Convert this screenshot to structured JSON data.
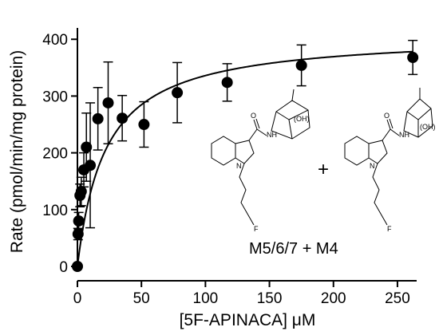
{
  "chart_data": {
    "type": "scatter",
    "title": "",
    "xlabel": "[5F-APINACA] μM",
    "ylabel": "Rate (pmol/min/mg protein)",
    "xlim": [
      0,
      265
    ],
    "ylim": [
      0,
      420
    ],
    "x_ticks": [
      0,
      50,
      100,
      150,
      200,
      250
    ],
    "y_ticks": [
      0,
      100,
      200,
      300,
      400
    ],
    "x_tick_labels": [
      "0",
      "50",
      "100",
      "150",
      "200",
      "250"
    ],
    "y_tick_labels": [
      "0",
      "100",
      "200",
      "300",
      "400"
    ],
    "grid": false,
    "legend": "none",
    "marker_color": "#000000",
    "points": [
      {
        "x": 0,
        "y": 0,
        "err": 0
      },
      {
        "x": 0.5,
        "y": 57,
        "err": 10
      },
      {
        "x": 1,
        "y": 80,
        "err": 15
      },
      {
        "x": 2,
        "y": 125,
        "err": 20
      },
      {
        "x": 3,
        "y": 132,
        "err": 25
      },
      {
        "x": 5,
        "y": 170,
        "err": 30
      },
      {
        "x": 7,
        "y": 210,
        "err": 60
      },
      {
        "x": 10,
        "y": 178,
        "err": 110
      },
      {
        "x": 16,
        "y": 260,
        "err": 55
      },
      {
        "x": 24,
        "y": 288,
        "err": 72
      },
      {
        "x": 35,
        "y": 261,
        "err": 40
      },
      {
        "x": 52,
        "y": 250,
        "err": 40
      },
      {
        "x": 78,
        "y": 306,
        "err": 53
      },
      {
        "x": 117,
        "y": 324,
        "err": 33
      },
      {
        "x": 175,
        "y": 354,
        "err": 36
      },
      {
        "x": 262,
        "y": 368,
        "err": 30
      }
    ],
    "fit": {
      "type": "michaelis-menten",
      "vmax": 410,
      "km": 22
    },
    "annotations": {
      "plus": "+",
      "metabolites": "M5/6/7 + M4",
      "oh_left": "(OH)",
      "oh_right": "(OH)",
      "n_label": "N",
      "nh_label": "NH",
      "o_label": "O",
      "f_label": "F"
    }
  }
}
